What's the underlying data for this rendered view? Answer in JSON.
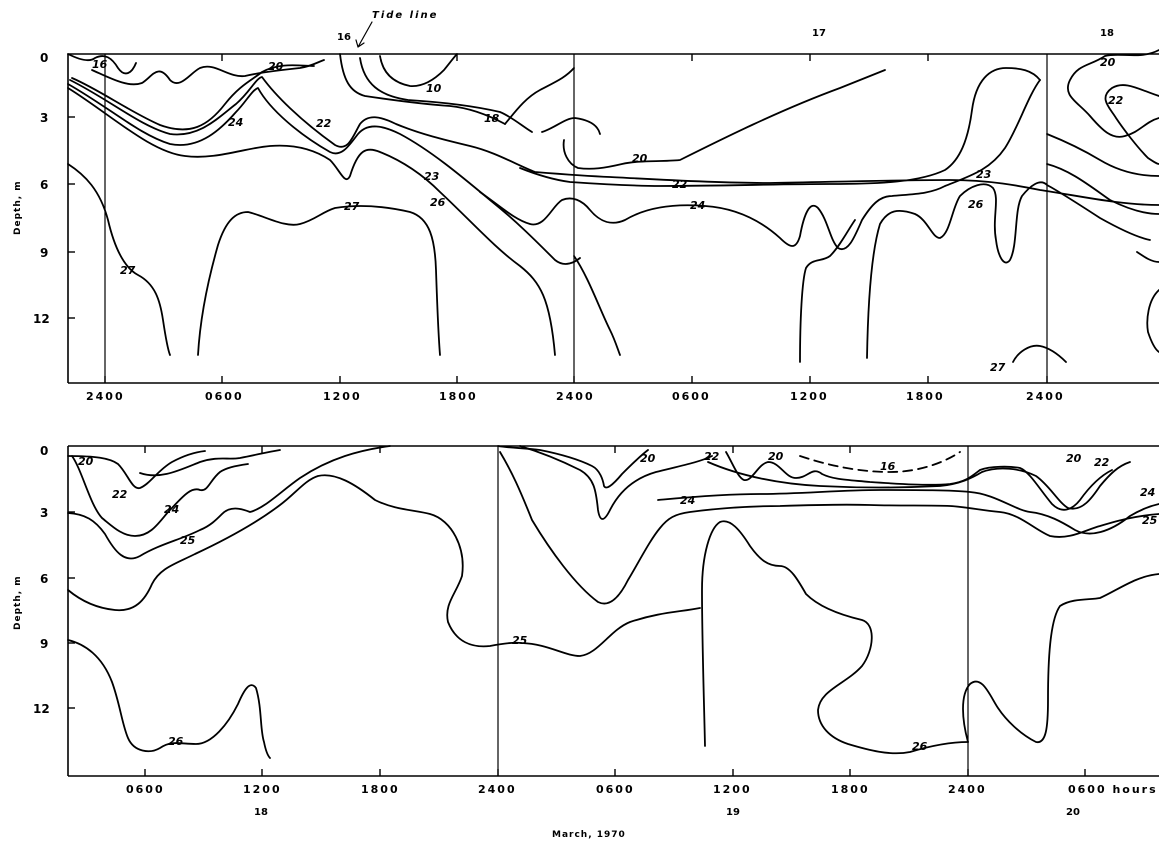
{
  "chart_data": [
    {
      "type": "contour",
      "panel": "upper",
      "ylabel": "Depth, m",
      "ylim": [
        0,
        14
      ],
      "y_ticks": [
        "0",
        "3",
        "6",
        "9",
        "12"
      ],
      "x_ticks": [
        "2400",
        "0600",
        "1200",
        "1800",
        "2400",
        "0600",
        "1200",
        "1800",
        "2400"
      ],
      "day_labels": [
        "16",
        "17",
        "18"
      ],
      "annotation": "Tide line",
      "contour_labels": [
        "16",
        "20",
        "10",
        "18",
        "22",
        "24",
        "23",
        "26",
        "27",
        "27",
        "20",
        "22",
        "24",
        "23",
        "26",
        "27",
        "20",
        "22"
      ],
      "contour_levels": [
        10,
        16,
        18,
        20,
        22,
        23,
        24,
        26,
        27
      ]
    },
    {
      "type": "contour",
      "panel": "lower",
      "ylabel": "Depth, m",
      "ylim": [
        0,
        14
      ],
      "y_ticks": [
        "0",
        "3",
        "6",
        "9",
        "12"
      ],
      "x_ticks": [
        "0600",
        "1200",
        "1800",
        "2400",
        "0600",
        "1200",
        "1800",
        "2400",
        "0600 hours"
      ],
      "day_labels": [
        "18",
        "19",
        "20"
      ],
      "xlabel": "March, 1970",
      "contour_labels": [
        "20",
        "22",
        "24",
        "25",
        "26",
        "25",
        "20",
        "22",
        "20",
        "16",
        "24",
        "20",
        "22",
        "24",
        "25",
        "26"
      ],
      "contour_levels": [
        16,
        20,
        22,
        24,
        25,
        26
      ]
    }
  ]
}
